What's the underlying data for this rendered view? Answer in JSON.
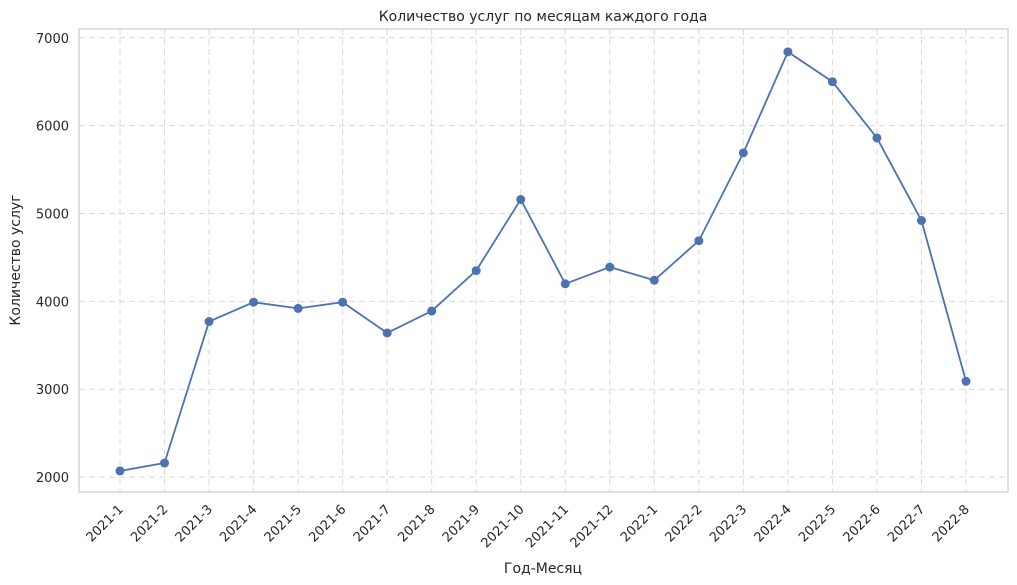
{
  "chart_data": {
    "type": "line",
    "title": "Количество услуг по месяцам каждого года",
    "xlabel": "Год-Месяц",
    "ylabel": "Количество услуг",
    "categories": [
      "2021-1",
      "2021-2",
      "2021-3",
      "2021-4",
      "2021-5",
      "2021-6",
      "2021-7",
      "2021-8",
      "2021-9",
      "2021-10",
      "2021-11",
      "2021-12",
      "2022-1",
      "2022-2",
      "2022-3",
      "2022-4",
      "2022-5",
      "2022-6",
      "2022-7",
      "2022-8"
    ],
    "series": [
      {
        "values": [
          2070,
          2160,
          3770,
          3990,
          3920,
          3990,
          3640,
          3890,
          4350,
          5160,
          4200,
          4390,
          4240,
          4690,
          5690,
          6840,
          6500,
          5860,
          4920,
          3090
        ],
        "color": "#4c72b0",
        "marker": "circle"
      }
    ],
    "ylim": [
      1830,
      7100
    ],
    "yticks": [
      2000,
      3000,
      4000,
      5000,
      6000,
      7000
    ],
    "grid": true,
    "legend": "none"
  }
}
